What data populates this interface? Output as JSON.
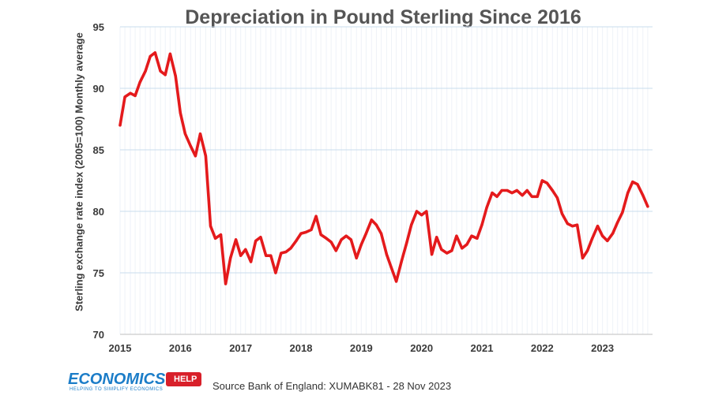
{
  "chart_data": {
    "type": "line",
    "title": "Depreciation in Pound Sterling Since 2016",
    "ylabel": "Sterling exchange rate index (2005=100) Monthly average",
    "xlabel": "",
    "ylim": [
      70,
      95
    ],
    "xlim": [
      2015,
      2023.83
    ],
    "y_ticks": [
      "70",
      "75",
      "80",
      "85",
      "90",
      "95"
    ],
    "x_ticks": [
      "2015",
      "2016",
      "2017",
      "2018",
      "2019",
      "2020",
      "2021",
      "2022",
      "2023"
    ],
    "grid": true,
    "series": [
      {
        "name": "Sterling exchange rate index",
        "color": "#e41a1c",
        "points": [
          [
            2015.0,
            87.0
          ],
          [
            2015.08,
            89.3
          ],
          [
            2015.17,
            89.6
          ],
          [
            2015.25,
            89.4
          ],
          [
            2015.33,
            90.5
          ],
          [
            2015.42,
            91.4
          ],
          [
            2015.5,
            92.6
          ],
          [
            2015.58,
            92.9
          ],
          [
            2015.67,
            91.4
          ],
          [
            2015.75,
            91.1
          ],
          [
            2015.83,
            92.8
          ],
          [
            2015.92,
            91.0
          ],
          [
            2016.0,
            88.0
          ],
          [
            2016.08,
            86.3
          ],
          [
            2016.17,
            85.3
          ],
          [
            2016.25,
            84.5
          ],
          [
            2016.33,
            86.3
          ],
          [
            2016.42,
            84.5
          ],
          [
            2016.5,
            78.8
          ],
          [
            2016.58,
            77.8
          ],
          [
            2016.67,
            78.1
          ],
          [
            2016.75,
            74.1
          ],
          [
            2016.83,
            76.2
          ],
          [
            2016.92,
            77.7
          ],
          [
            2017.0,
            76.4
          ],
          [
            2017.08,
            76.9
          ],
          [
            2017.17,
            75.9
          ],
          [
            2017.25,
            77.6
          ],
          [
            2017.33,
            77.9
          ],
          [
            2017.42,
            76.4
          ],
          [
            2017.5,
            76.4
          ],
          [
            2017.58,
            75.0
          ],
          [
            2017.67,
            76.6
          ],
          [
            2017.75,
            76.7
          ],
          [
            2017.83,
            77.0
          ],
          [
            2017.92,
            77.6
          ],
          [
            2018.0,
            78.2
          ],
          [
            2018.08,
            78.3
          ],
          [
            2018.17,
            78.5
          ],
          [
            2018.25,
            79.6
          ],
          [
            2018.33,
            78.1
          ],
          [
            2018.42,
            77.8
          ],
          [
            2018.5,
            77.5
          ],
          [
            2018.58,
            76.8
          ],
          [
            2018.67,
            77.7
          ],
          [
            2018.75,
            78.0
          ],
          [
            2018.83,
            77.7
          ],
          [
            2018.92,
            76.2
          ],
          [
            2019.0,
            77.3
          ],
          [
            2019.08,
            78.2
          ],
          [
            2019.17,
            79.3
          ],
          [
            2019.25,
            78.9
          ],
          [
            2019.33,
            78.2
          ],
          [
            2019.42,
            76.5
          ],
          [
            2019.5,
            75.4
          ],
          [
            2019.58,
            74.3
          ],
          [
            2019.67,
            76.0
          ],
          [
            2019.75,
            77.4
          ],
          [
            2019.83,
            78.9
          ],
          [
            2019.92,
            80.0
          ],
          [
            2020.0,
            79.7
          ],
          [
            2020.08,
            80.0
          ],
          [
            2020.17,
            76.5
          ],
          [
            2020.25,
            77.9
          ],
          [
            2020.33,
            76.9
          ],
          [
            2020.42,
            76.6
          ],
          [
            2020.5,
            76.8
          ],
          [
            2020.58,
            78.0
          ],
          [
            2020.67,
            77.0
          ],
          [
            2020.75,
            77.3
          ],
          [
            2020.83,
            78.0
          ],
          [
            2020.92,
            77.8
          ],
          [
            2021.0,
            78.9
          ],
          [
            2021.08,
            80.3
          ],
          [
            2021.17,
            81.5
          ],
          [
            2021.25,
            81.2
          ],
          [
            2021.33,
            81.7
          ],
          [
            2021.42,
            81.7
          ],
          [
            2021.5,
            81.5
          ],
          [
            2021.58,
            81.7
          ],
          [
            2021.67,
            81.3
          ],
          [
            2021.75,
            81.7
          ],
          [
            2021.83,
            81.2
          ],
          [
            2021.92,
            81.2
          ],
          [
            2022.0,
            82.5
          ],
          [
            2022.08,
            82.3
          ],
          [
            2022.17,
            81.7
          ],
          [
            2022.25,
            81.1
          ],
          [
            2022.33,
            79.8
          ],
          [
            2022.42,
            79.0
          ],
          [
            2022.5,
            78.8
          ],
          [
            2022.58,
            78.9
          ],
          [
            2022.67,
            76.2
          ],
          [
            2022.75,
            76.8
          ],
          [
            2022.83,
            77.8
          ],
          [
            2022.92,
            78.8
          ],
          [
            2023.0,
            78.0
          ],
          [
            2023.08,
            77.6
          ],
          [
            2023.17,
            78.2
          ],
          [
            2023.25,
            79.1
          ],
          [
            2023.33,
            79.9
          ],
          [
            2023.42,
            81.5
          ],
          [
            2023.5,
            82.4
          ],
          [
            2023.58,
            82.2
          ],
          [
            2023.67,
            81.3
          ],
          [
            2023.75,
            80.4
          ]
        ]
      }
    ]
  },
  "footer": {
    "logo_word": "ECONOMICS",
    "logo_tag": "HELP",
    "logo_tagline": "HELPING TO SIMPLIFY ECONOMICS",
    "source": "Source Bank of England: XUMABK81 - 28 Nov 2023"
  },
  "colors": {
    "line": "#e41a1c",
    "grid": "#c9dcee",
    "logo_blue": "#1c7dc8",
    "logo_red": "#d8202a"
  }
}
